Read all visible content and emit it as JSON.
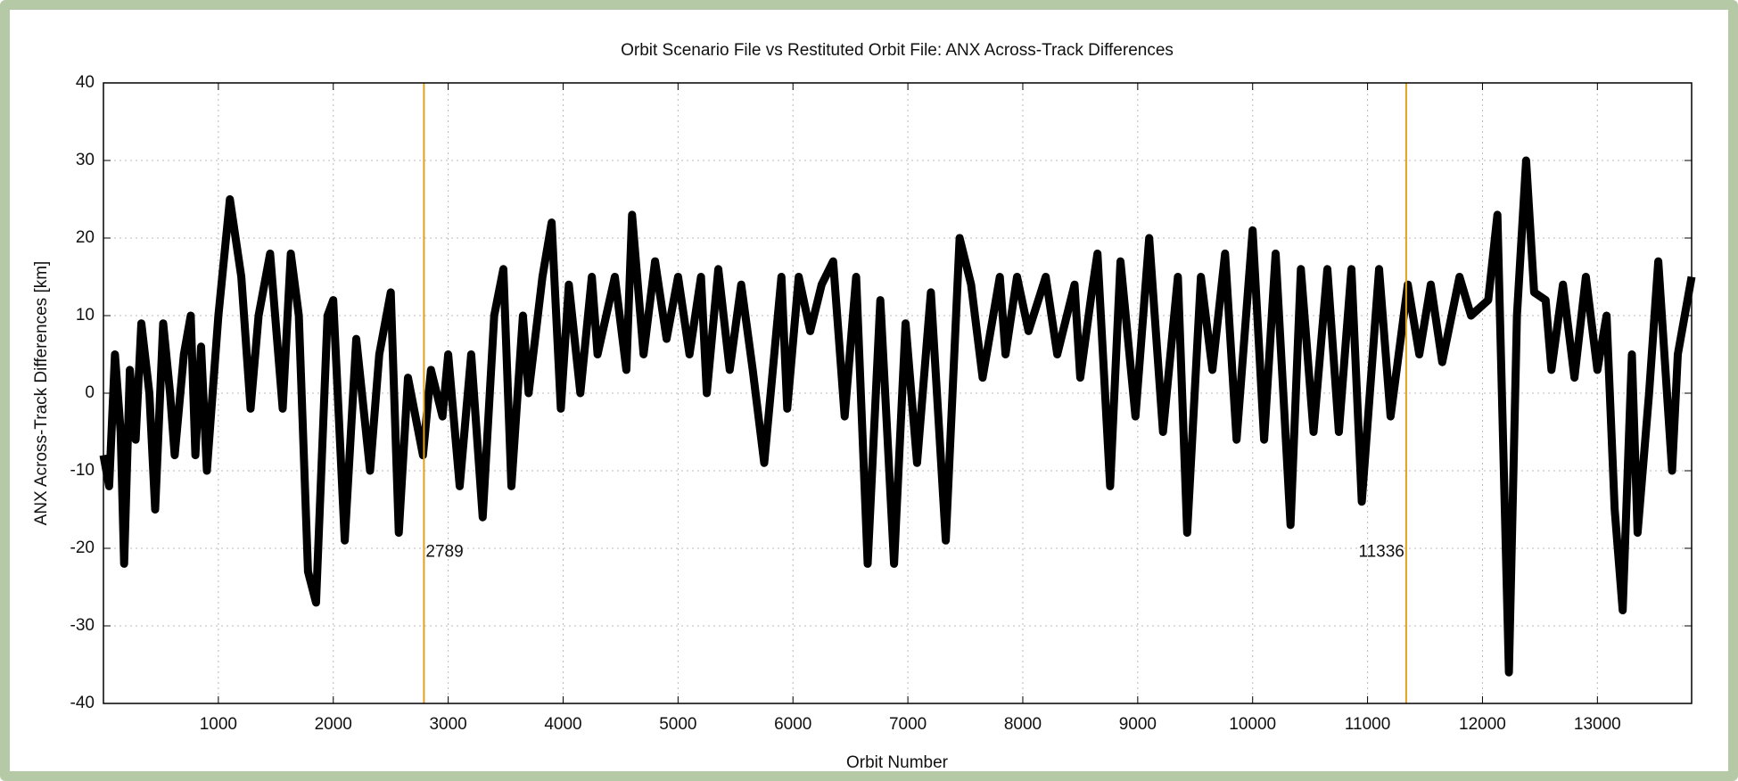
{
  "chart_data": {
    "type": "line",
    "title": "Orbit Scenario File vs Restituted Orbit File: ANX Across-Track Differences",
    "x_label": "Orbit Number",
    "y_label": "ANX Across-Track Differences [km]",
    "xlim": [
      0,
      13820
    ],
    "ylim": [
      -40,
      40
    ],
    "xticks": [
      1000,
      2000,
      3000,
      4000,
      5000,
      6000,
      7000,
      8000,
      9000,
      10000,
      11000,
      12000,
      13000
    ],
    "yticks": [
      -40,
      -30,
      -20,
      -10,
      0,
      10,
      20,
      30,
      40
    ],
    "grid": true,
    "vlines": [
      2789,
      11336
    ],
    "vline_color": "#e0a020",
    "series": [
      {
        "color": "#000000",
        "x": [
          0,
          50,
          100,
          150,
          180,
          230,
          280,
          330,
          400,
          450,
          520,
          580,
          620,
          700,
          760,
          800,
          850,
          900,
          950,
          1000,
          1100,
          1200,
          1280,
          1350,
          1450,
          1560,
          1630,
          1700,
          1780,
          1850,
          1950,
          2000,
          2100,
          2200,
          2320,
          2400,
          2500,
          2570,
          2650,
          2780,
          2850,
          2950,
          3000,
          3100,
          3200,
          3300,
          3400,
          3480,
          3550,
          3650,
          3700,
          3820,
          3900,
          3980,
          4050,
          4150,
          4250,
          4300,
          4450,
          4550,
          4600,
          4700,
          4800,
          4900,
          5000,
          5100,
          5200,
          5250,
          5350,
          5450,
          5550,
          5650,
          5750,
          5900,
          5950,
          6050,
          6150,
          6250,
          6350,
          6450,
          6550,
          6650,
          6760,
          6880,
          6980,
          7080,
          7200,
          7330,
          7450,
          7550,
          7650,
          7800,
          7850,
          7950,
          8050,
          8200,
          8300,
          8450,
          8500,
          8600,
          8650,
          8760,
          8850,
          8980,
          9100,
          9220,
          9350,
          9430,
          9550,
          9650,
          9760,
          9860,
          10000,
          10100,
          10200,
          10330,
          10420,
          10530,
          10650,
          10750,
          10860,
          10950,
          11100,
          11200,
          11350,
          11450,
          11550,
          11650,
          11800,
          11900,
          12050,
          12130,
          12230,
          12300,
          12380,
          12450,
          12550,
          12600,
          12700,
          12800,
          12900,
          13000,
          13080,
          13150,
          13220,
          13300,
          13350,
          13450,
          13530,
          13650,
          13700,
          13820
        ],
        "values": [
          -8,
          -12,
          5,
          -5,
          -22,
          3,
          -6,
          9,
          0,
          -15,
          9,
          0,
          -8,
          5,
          10,
          -8,
          6,
          -10,
          0,
          10,
          25,
          15,
          -2,
          10,
          18,
          -2,
          18,
          10,
          -23,
          -27,
          10,
          12,
          -19,
          7,
          -10,
          5,
          13,
          -18,
          2,
          -8,
          3,
          -3,
          5,
          -12,
          5,
          -16,
          10,
          16,
          -12,
          10,
          0,
          15,
          22,
          -2,
          14,
          0,
          15,
          5,
          15,
          3,
          23,
          5,
          17,
          7,
          15,
          5,
          15,
          0,
          16,
          3,
          14,
          3,
          -9,
          15,
          -2,
          15,
          8,
          14,
          17,
          -3,
          15,
          -22,
          12,
          -22,
          9,
          -9,
          13,
          -19,
          20,
          14,
          2,
          15,
          5,
          15,
          8,
          15,
          5,
          14,
          2,
          13,
          18,
          -12,
          17,
          -3,
          20,
          -5,
          15,
          -18,
          15,
          3,
          18,
          -6,
          21,
          -6,
          18,
          -17,
          16,
          -5,
          16,
          -5,
          16,
          -14,
          16,
          -3,
          14,
          5,
          14,
          4,
          15,
          10,
          12,
          23,
          -36,
          10,
          30,
          13,
          12,
          3,
          14,
          2,
          15,
          3,
          10,
          -15,
          -28,
          5,
          -18,
          0,
          17,
          -10,
          5,
          15
        ]
      }
    ]
  }
}
